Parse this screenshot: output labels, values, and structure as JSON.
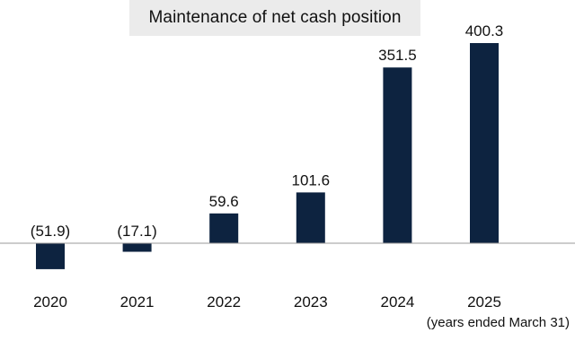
{
  "chart_data": {
    "type": "bar",
    "title": "Maintenance of net cash position",
    "categories": [
      "2020",
      "2021",
      "2022",
      "2023",
      "2024",
      "2025"
    ],
    "values": [
      -51.9,
      -17.1,
      59.6,
      101.6,
      351.5,
      400.3
    ],
    "value_labels": [
      "(51.9)",
      "(17.1)",
      "59.6",
      "101.6",
      "351.5",
      "400.3"
    ],
    "note": "(years ended March 31)",
    "ylim": [
      -60,
      400
    ],
    "grid": false,
    "legend": "none",
    "bar_color": "#0d2340",
    "baseline_color": "#9a9a9a"
  }
}
